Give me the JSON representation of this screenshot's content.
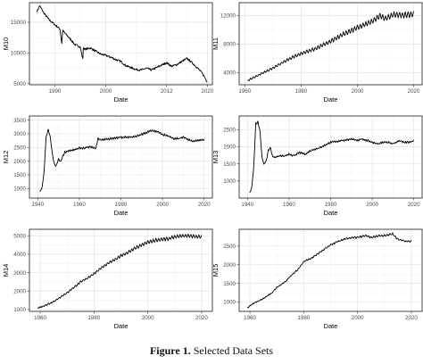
{
  "caption": {
    "label": "Figure 1.",
    "text": "Selected Data Sets"
  },
  "chart_data": [
    {
      "type": "line",
      "ylabel": "M10",
      "xlabel": "Date",
      "xlim": [
        1985,
        2021
      ],
      "ylim": [
        4800,
        18200
      ],
      "xticks": [
        1990,
        2000,
        2012,
        2020
      ],
      "yticks": [
        5000,
        10000,
        15000
      ],
      "ytick_labels": [
        "5000",
        "10000",
        "15000"
      ],
      "grid": true,
      "series": [
        {
          "x": [
            1986.5,
            1987,
            1988,
            1989,
            1990,
            1991,
            1991.4,
            1991.5,
            1992,
            1993,
            1994,
            1995,
            1995.5,
            1995.6,
            1996,
            1997,
            1998,
            1999,
            2000,
            2001,
            2002,
            2003,
            2004,
            2005,
            2006,
            2007,
            2008,
            2009,
            2010,
            2011,
            2012,
            2013,
            2014,
            2015,
            2016,
            2017,
            2018,
            2019,
            2020
          ],
          "y": [
            16800,
            17700,
            16300,
            15300,
            14600,
            13900,
            11300,
            13700,
            13200,
            12300,
            11300,
            11000,
            8900,
            10800,
            10600,
            10800,
            10300,
            9800,
            9600,
            9300,
            8900,
            8600,
            7900,
            7600,
            7300,
            7200,
            7500,
            7200,
            7600,
            8000,
            8400,
            7800,
            8100,
            8600,
            9100,
            8400,
            7600,
            6700,
            5300
          ],
          "noise": 0,
          "jitter": 0.025
        }
      ]
    },
    {
      "type": "line",
      "ylabel": "M11",
      "xlabel": "Date",
      "xlim": [
        1958,
        2023
      ],
      "ylim": [
        2300,
        13800
      ],
      "xticks": [
        1960,
        1980,
        2000,
        2020
      ],
      "yticks": [
        4000,
        8000,
        12000
      ],
      "ytick_labels": [
        "4000",
        "8000",
        "12000"
      ],
      "grid": true,
      "series": [
        {
          "x": [
            1961,
            1965,
            1970,
            1975,
            1980,
            1985,
            1990,
            1995,
            2000,
            2005,
            2008,
            2010,
            2013,
            2016,
            2020
          ],
          "y": [
            3000,
            3800,
            4800,
            6000,
            6900,
            7600,
            8600,
            9700,
            10700,
            11500,
            12400,
            12000,
            12600,
            12500,
            12600
          ],
          "noise": 0.07,
          "jitter": 0.01
        }
      ]
    },
    {
      "type": "line",
      "ylabel": "M12",
      "xlabel": "Date",
      "xlim": [
        1936,
        2024
      ],
      "ylim": [
        650,
        3650
      ],
      "xticks": [
        1940,
        1960,
        1980,
        2000,
        2020
      ],
      "yticks": [
        1000,
        1500,
        2000,
        2500,
        3000,
        3500
      ],
      "ytick_labels": [
        "1000",
        "1500",
        "2000",
        "2500",
        "3000",
        "3500"
      ],
      "grid": true,
      "series": [
        {
          "x": [
            1941,
            1942,
            1943,
            1944,
            1945,
            1946,
            1947,
            1948,
            1949,
            1950,
            1951,
            1952,
            1953,
            1955,
            1958,
            1960,
            1962,
            1965,
            1968,
            1969,
            1970,
            1975,
            1980,
            1985,
            1990,
            1993,
            1995,
            1998,
            2000,
            2003,
            2005,
            2008,
            2010,
            2013,
            2015,
            2018,
            2020
          ],
          "y": [
            900,
            1000,
            1600,
            2900,
            3200,
            2900,
            2300,
            1900,
            1850,
            2100,
            2000,
            2200,
            2350,
            2400,
            2450,
            2500,
            2500,
            2550,
            2500,
            2850,
            2800,
            2850,
            2900,
            2900,
            3000,
            3100,
            3150,
            3100,
            3000,
            2950,
            2850,
            2850,
            2900,
            2800,
            2750,
            2800,
            2800
          ],
          "noise": 0.02,
          "jitter": 0.015
        }
      ]
    },
    {
      "type": "line",
      "ylabel": "M13",
      "xlabel": "Date",
      "xlim": [
        1936,
        2024
      ],
      "ylim": [
        500,
        2900
      ],
      "xticks": [
        1940,
        1960,
        1980,
        2000,
        2020
      ],
      "yticks": [
        1000,
        1500,
        2000,
        2500
      ],
      "ytick_labels": [
        "1000",
        "1500",
        "2000",
        "2500"
      ],
      "grid": true,
      "series": [
        {
          "x": [
            1941,
            1942,
            1943,
            1944,
            1945,
            1946,
            1947,
            1948,
            1949,
            1950,
            1951,
            1952,
            1953,
            1955,
            1958,
            1960,
            1962,
            1965,
            1968,
            1970,
            1975,
            1980,
            1985,
            1990,
            1993,
            1995,
            1998,
            2000,
            2003,
            2005,
            2008,
            2010,
            2013,
            2015,
            2018,
            2020
          ],
          "y": [
            650,
            800,
            1400,
            2700,
            2750,
            2500,
            1700,
            1500,
            1600,
            1900,
            2000,
            1750,
            1700,
            1750,
            1750,
            1800,
            1750,
            1850,
            1800,
            1900,
            2000,
            2150,
            2200,
            2250,
            2200,
            2250,
            2200,
            2150,
            2100,
            2150,
            2150,
            2100,
            2200,
            2150,
            2150,
            2200
          ],
          "noise": 0.02,
          "jitter": 0.015
        }
      ]
    },
    {
      "type": "line",
      "ylabel": "M14",
      "xlabel": "Date",
      "xlim": [
        1956,
        2024
      ],
      "ylim": [
        900,
        5350
      ],
      "xticks": [
        1960,
        1980,
        2000,
        2020
      ],
      "yticks": [
        1000,
        2000,
        3000,
        4000,
        5000
      ],
      "ytick_labels": [
        "1000",
        "2000",
        "3000",
        "4000",
        "5000"
      ],
      "grid": true,
      "series": [
        {
          "x": [
            1959,
            1962,
            1965,
            1968,
            1970,
            1973,
            1975,
            1978,
            1980,
            1983,
            1985,
            1988,
            1990,
            1993,
            1995,
            1998,
            2000,
            2003,
            2005,
            2008,
            2010,
            2013,
            2015,
            2018,
            2020
          ],
          "y": [
            1100,
            1250,
            1450,
            1750,
            1950,
            2300,
            2550,
            2800,
            3000,
            3350,
            3550,
            3800,
            4000,
            4200,
            4400,
            4600,
            4750,
            4850,
            4900,
            4950,
            5050,
            5100,
            5100,
            5050,
            5050
          ],
          "noise": 0.04,
          "jitter": 0.01
        }
      ]
    },
    {
      "type": "line",
      "ylabel": "M15",
      "xlabel": "Date",
      "xlim": [
        1956,
        2024
      ],
      "ylim": [
        750,
        2950
      ],
      "xticks": [
        1960,
        1980,
        2000,
        2020
      ],
      "yticks": [
        1000,
        1500,
        2000,
        2500
      ],
      "ytick_labels": [
        "1000",
        "1500",
        "2000",
        "2500"
      ],
      "grid": true,
      "series": [
        {
          "x": [
            1959,
            1962,
            1965,
            1968,
            1970,
            1973,
            1975,
            1978,
            1980,
            1983,
            1985,
            1988,
            1990,
            1993,
            1995,
            1998,
            2000,
            2003,
            2005,
            2008,
            2010,
            2013,
            2015,
            2018,
            2020
          ],
          "y": [
            850,
            1000,
            1100,
            1250,
            1400,
            1550,
            1700,
            1900,
            2100,
            2200,
            2300,
            2450,
            2550,
            2650,
            2700,
            2750,
            2750,
            2800,
            2750,
            2800,
            2800,
            2850,
            2700,
            2650,
            2650
          ],
          "noise": 0.015,
          "jitter": 0.012
        }
      ]
    }
  ]
}
